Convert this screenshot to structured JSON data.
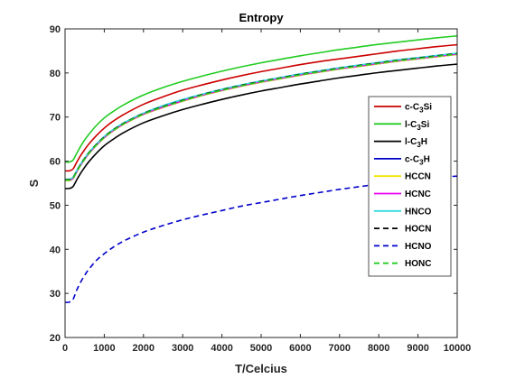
{
  "chart_data": {
    "type": "line",
    "title": "Entropy",
    "xlabel": "T/Celcius",
    "ylabel": "S",
    "xlim": [
      0,
      10000
    ],
    "ylim": [
      20,
      90
    ],
    "x_ticks": [
      0,
      1000,
      2000,
      3000,
      4000,
      5000,
      6000,
      7000,
      8000,
      9000,
      10000
    ],
    "y_ticks": [
      20,
      30,
      40,
      50,
      60,
      70,
      80,
      90
    ],
    "grid": false,
    "legend_position": "right",
    "x": [
      0,
      100,
      200,
      300,
      400,
      500,
      600,
      800,
      1000,
      1200,
      1500,
      2000,
      2500,
      3000,
      3500,
      4000,
      4500,
      5000,
      5500,
      6000,
      6500,
      7000,
      7500,
      8000,
      8500,
      9000,
      9500,
      10000
    ],
    "series": [
      {
        "name": "c-C3Si",
        "name_parts": {
          "pre": "c-C",
          "sub": "3",
          "post": "Si"
        },
        "color": "#cc0000",
        "dash": "solid",
        "values": [
          57.8,
          57.8,
          58.2,
          59.8,
          61.3,
          62.6,
          63.8,
          65.8,
          67.5,
          68.9,
          70.6,
          72.9,
          74.6,
          76.1,
          77.3,
          78.4,
          79.4,
          80.3,
          81.1,
          81.9,
          82.6,
          83.2,
          83.8,
          84.4,
          85.0,
          85.5,
          86.0,
          86.4
        ]
      },
      {
        "name": "l-C3Si",
        "name_parts": {
          "pre": "l-C",
          "sub": "3",
          "post": "Si"
        },
        "color": "#22cc22",
        "dash": "solid",
        "values": [
          59.8,
          59.8,
          60.2,
          61.8,
          63.4,
          64.8,
          66.0,
          68.1,
          69.8,
          71.1,
          72.8,
          75.0,
          76.7,
          78.1,
          79.3,
          80.4,
          81.4,
          82.3,
          83.1,
          83.9,
          84.6,
          85.3,
          85.9,
          86.5,
          87.0,
          87.5,
          88.0,
          88.4
        ]
      },
      {
        "name": "l-C3H",
        "name_parts": {
          "pre": "l-C",
          "sub": "3",
          "post": "H"
        },
        "color": "#000000",
        "dash": "solid",
        "values": [
          53.8,
          53.8,
          54.2,
          55.8,
          57.3,
          58.6,
          59.8,
          61.8,
          63.5,
          64.8,
          66.5,
          68.7,
          70.3,
          71.7,
          72.9,
          74.0,
          75.0,
          75.9,
          76.7,
          77.5,
          78.2,
          78.9,
          79.5,
          80.1,
          80.6,
          81.1,
          81.6,
          82.0
        ]
      },
      {
        "name": "c-C3H",
        "name_parts": {
          "pre": "c-C",
          "sub": "3",
          "post": "H"
        },
        "color": "#0000cc",
        "dash": "solid",
        "values": [
          55.6,
          55.6,
          56.0,
          57.6,
          59.1,
          60.4,
          61.6,
          63.6,
          65.3,
          66.7,
          68.4,
          70.6,
          72.2,
          73.6,
          74.9,
          76.0,
          77.0,
          77.9,
          78.7,
          79.5,
          80.2,
          80.9,
          81.5,
          82.1,
          82.7,
          83.2,
          83.7,
          84.2
        ]
      },
      {
        "name": "HCCN",
        "color": "#f2e600",
        "dash": "solid",
        "values": [
          55.6,
          55.6,
          56.0,
          57.6,
          59.1,
          60.4,
          61.6,
          63.6,
          65.3,
          66.7,
          68.4,
          70.6,
          72.2,
          73.6,
          74.9,
          76.0,
          77.0,
          77.9,
          78.7,
          79.5,
          80.2,
          80.9,
          81.5,
          82.1,
          82.7,
          83.2,
          83.7,
          84.2
        ]
      },
      {
        "name": "HCNC",
        "color": "#ee00ee",
        "dash": "solid",
        "values": [
          55.7,
          55.7,
          56.1,
          57.7,
          59.2,
          60.5,
          61.7,
          63.7,
          65.4,
          66.8,
          68.5,
          70.7,
          72.3,
          73.7,
          75.0,
          76.1,
          77.1,
          78.0,
          78.8,
          79.6,
          80.3,
          81.0,
          81.6,
          82.2,
          82.8,
          83.3,
          83.8,
          84.3
        ]
      },
      {
        "name": "HNCO",
        "color": "#33dddd",
        "dash": "solid",
        "values": [
          55.9,
          55.9,
          56.3,
          57.9,
          59.4,
          60.7,
          61.9,
          63.9,
          65.6,
          67.0,
          68.7,
          70.9,
          72.6,
          74.0,
          75.2,
          76.3,
          77.3,
          78.2,
          79.0,
          79.8,
          80.5,
          81.2,
          81.8,
          82.4,
          83.0,
          83.5,
          84.0,
          84.5
        ]
      },
      {
        "name": "HOCN",
        "color": "#000000",
        "dash": "dashed",
        "values": [
          55.8,
          55.8,
          56.2,
          57.8,
          59.3,
          60.6,
          61.8,
          63.8,
          65.5,
          66.9,
          68.6,
          70.8,
          72.4,
          73.8,
          75.1,
          76.2,
          77.2,
          78.1,
          78.9,
          79.7,
          80.4,
          81.1,
          81.7,
          82.3,
          82.9,
          83.4,
          83.9,
          84.4
        ]
      },
      {
        "name": "HCNO",
        "color": "#0000cc",
        "dash": "dashed",
        "values": [
          28.0,
          28.0,
          28.6,
          30.8,
          32.6,
          34.1,
          35.4,
          37.5,
          39.0,
          40.3,
          41.9,
          43.9,
          45.4,
          46.7,
          47.8,
          48.8,
          49.8,
          50.6,
          51.4,
          52.2,
          52.9,
          53.6,
          54.2,
          54.8,
          55.3,
          55.8,
          56.3,
          56.6
        ]
      },
      {
        "name": "HONC",
        "color": "#22cc22",
        "dash": "dashed",
        "values": [
          55.7,
          55.7,
          56.1,
          57.7,
          59.2,
          60.5,
          61.7,
          63.7,
          65.4,
          66.8,
          68.5,
          70.7,
          72.3,
          73.7,
          75.0,
          76.1,
          77.1,
          78.0,
          78.8,
          79.6,
          80.3,
          81.0,
          81.6,
          82.2,
          82.8,
          83.3,
          83.8,
          84.3
        ]
      }
    ]
  }
}
